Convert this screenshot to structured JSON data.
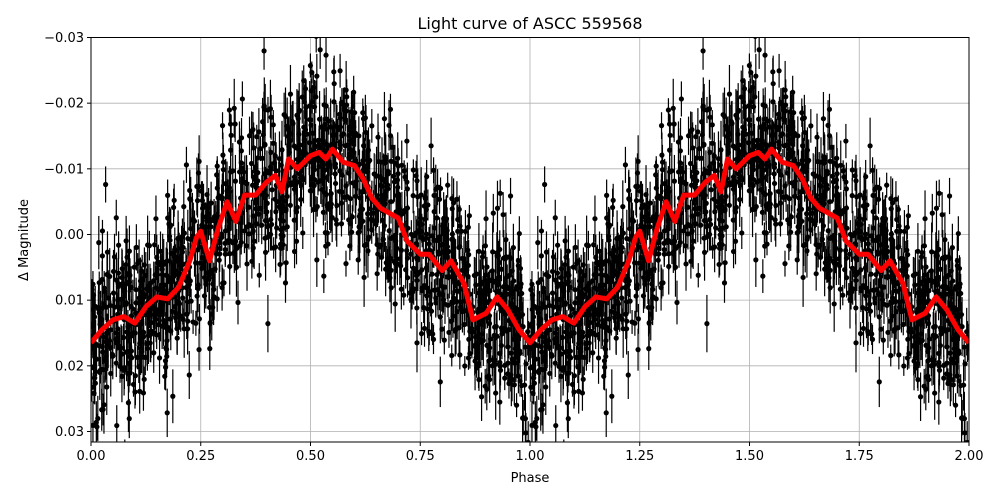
{
  "chart_data": {
    "type": "scatter",
    "title": "Light curve of ASCC 559568",
    "xlabel": "Phase",
    "ylabel": "Δ Magnitude",
    "xlim": [
      0,
      2
    ],
    "ylim": [
      -0.03,
      0.0316
    ],
    "y_inverted": true,
    "grid": true,
    "xticks": [
      "0.00",
      "0.25",
      "0.50",
      "0.75",
      "1.00",
      "1.25",
      "1.50",
      "1.75",
      "2.00"
    ],
    "xtick_values": [
      0,
      0.25,
      0.5,
      0.75,
      1,
      1.25,
      1.5,
      1.75,
      2
    ],
    "yticks": [
      "−0.03",
      "−0.02",
      "−0.01",
      "0.00",
      "0.01",
      "0.02",
      "0.03"
    ],
    "ytick_values": [
      -0.03,
      -0.02,
      -0.01,
      0,
      0.01,
      0.02,
      0.03
    ],
    "series": [
      {
        "kind": "points-with-errorbars",
        "color": "#000000",
        "description_of_spread": "dense phase-folded photometry, repeated over two cycles"
      },
      {
        "kind": "line",
        "color": "#ff0000",
        "phase": [
          0,
          0.025,
          0.05,
          0.075,
          0.1,
          0.125,
          0.15,
          0.175,
          0.2,
          0.225,
          0.24,
          0.25,
          0.27,
          0.29,
          0.31,
          0.33,
          0.35,
          0.375,
          0.4,
          0.42,
          0.435,
          0.45,
          0.47,
          0.5,
          0.52,
          0.535,
          0.55,
          0.575,
          0.6,
          0.62,
          0.64,
          0.66,
          0.7,
          0.72,
          0.75,
          0.77,
          0.8,
          0.82,
          0.85,
          0.87,
          0.9,
          0.925,
          0.95,
          0.975,
          1.0
        ],
        "magnitude": [
          0.0165,
          0.0145,
          0.013,
          0.0125,
          0.0135,
          0.011,
          0.0095,
          0.0098,
          0.008,
          0.004,
          0.0005,
          -0.0005,
          0.004,
          -0.001,
          -0.005,
          -0.002,
          -0.006,
          -0.006,
          -0.008,
          -0.009,
          -0.0065,
          -0.0115,
          -0.01,
          -0.012,
          -0.0125,
          -0.0115,
          -0.013,
          -0.011,
          -0.0105,
          -0.0085,
          -0.0055,
          -0.004,
          -0.0025,
          0.001,
          0.003,
          0.003,
          0.0055,
          0.004,
          0.0075,
          0.013,
          0.012,
          0.0095,
          0.0115,
          0.0145,
          0.0165
        ],
        "repeats_every_phase": 1
      }
    ]
  }
}
